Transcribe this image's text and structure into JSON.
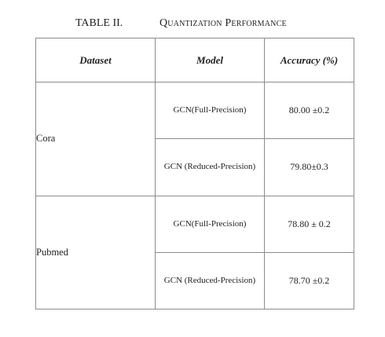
{
  "caption": {
    "label": "TABLE II.",
    "title": "Quantization Performance"
  },
  "table": {
    "headers": [
      "Dataset",
      "Model",
      "Accuracy (%)"
    ],
    "groups": [
      {
        "dataset": "Cora",
        "rows": [
          {
            "model": "GCN(Full-Precision)",
            "accuracy": "80.00 ±0.2"
          },
          {
            "model": "GCN (Reduced-Precision)",
            "accuracy": "79.80±0.3"
          }
        ]
      },
      {
        "dataset": "Pubmed",
        "rows": [
          {
            "model": "GCN(Full-Precision)",
            "accuracy": "78.80 ± 0.2"
          },
          {
            "model": "GCN (Reduced-Precision)",
            "accuracy": "78.70 ±0.2"
          }
        ]
      }
    ]
  }
}
